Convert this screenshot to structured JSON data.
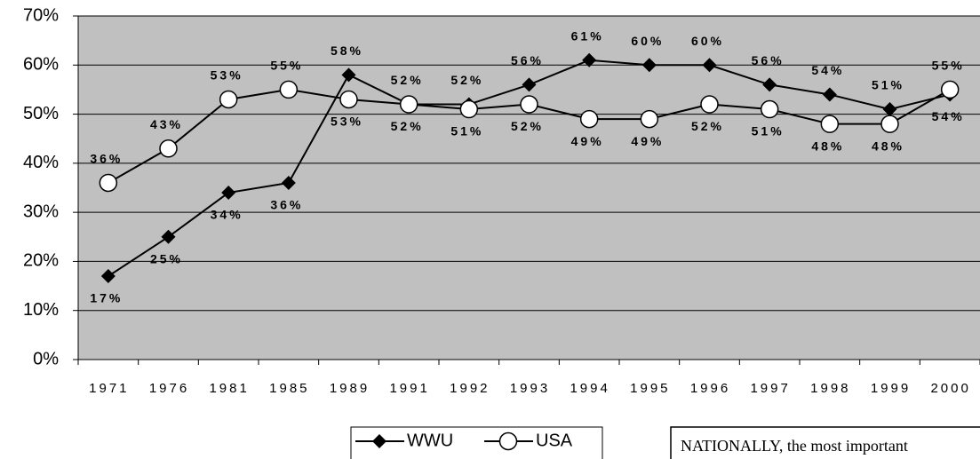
{
  "chart_data": {
    "type": "line",
    "categories": [
      "1971",
      "1976",
      "1981",
      "1985",
      "1989",
      "1991",
      "1992",
      "1993",
      "1994",
      "1995",
      "1996",
      "1997",
      "1998",
      "1999",
      "2000"
    ],
    "series": [
      {
        "name": "WWU",
        "color": "#000000",
        "marker": "diamond",
        "values": [
          17,
          25,
          34,
          36,
          58,
          52,
          52,
          56,
          61,
          60,
          60,
          56,
          54,
          51,
          54
        ],
        "value_labels": [
          "17%",
          "25%",
          "34%",
          "36%",
          "58%",
          "52%",
          "52%",
          "56%",
          "61%",
          "60%",
          "60%",
          "56%",
          "54%",
          "51%",
          "54%"
        ]
      },
      {
        "name": "USA",
        "color": "#000000",
        "marker": "circle",
        "values": [
          36,
          43,
          53,
          55,
          53,
          52,
          51,
          52,
          49,
          49,
          52,
          51,
          48,
          48,
          55
        ],
        "value_labels": [
          "36%",
          "43%",
          "53%",
          "55%",
          "53%",
          "52%",
          "51%",
          "52%",
          "49%",
          "49%",
          "52%",
          "51%",
          "48%",
          "48%",
          "55%"
        ]
      }
    ],
    "ylim": [
      0,
      70
    ],
    "yticks": [
      {
        "value": 0,
        "label": "0%"
      },
      {
        "value": 10,
        "label": "10%"
      },
      {
        "value": 20,
        "label": "20%"
      },
      {
        "value": 30,
        "label": "30%"
      },
      {
        "value": 40,
        "label": "40%"
      },
      {
        "value": 50,
        "label": "50%"
      },
      {
        "value": 60,
        "label": "60%"
      },
      {
        "value": 70,
        "label": "70%"
      }
    ],
    "grid": true,
    "plot_background": "#c0c0c0",
    "annotation": "NATIONALLY, the most important"
  }
}
